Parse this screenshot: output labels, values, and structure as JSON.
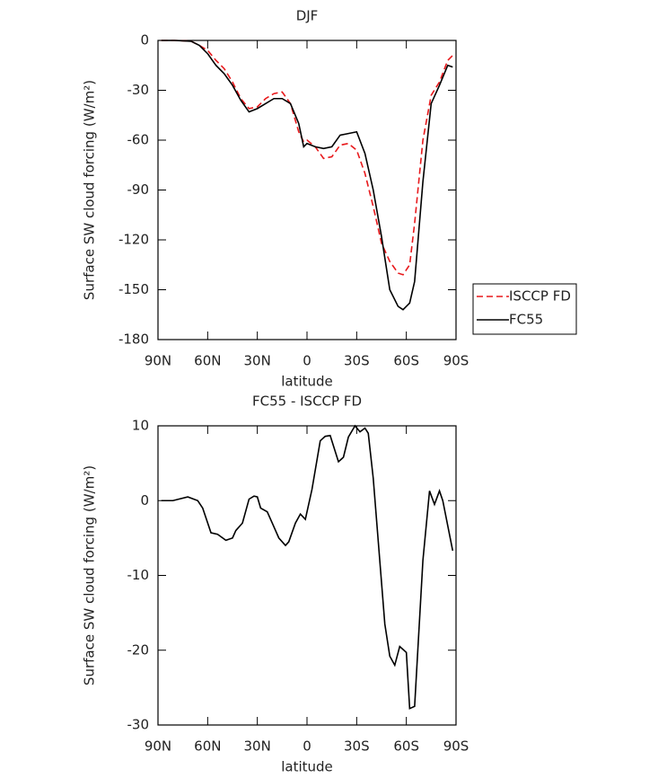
{
  "chart_data": [
    {
      "type": "line",
      "title": "DJF",
      "x_label": "latitude",
      "y_label": "Surface SW cloud forcing (W/m²)",
      "x": [
        88,
        80,
        70,
        65,
        60,
        55,
        50,
        45,
        40,
        35,
        30,
        25,
        20,
        15,
        10,
        5,
        2,
        0,
        -5,
        -10,
        -15,
        -20,
        -25,
        -30,
        -35,
        -40,
        -45,
        -50,
        -55,
        -58,
        -62,
        -65,
        -70,
        -75,
        -80,
        -85,
        -88
      ],
      "series": [
        {
          "name": "ISCCP FD",
          "color": "#e8191c",
          "linestyle": "dashed",
          "values": [
            0,
            0,
            -0.5,
            -3,
            -6,
            -12,
            -17,
            -25,
            -35,
            -41,
            -40,
            -35,
            -32,
            -31,
            -38,
            -55,
            -61,
            -60,
            -64,
            -71,
            -70,
            -63,
            -62,
            -66,
            -80,
            -100,
            -122,
            -133,
            -140,
            -141,
            -135,
            -110,
            -60,
            -33,
            -25,
            -12,
            -9
          ]
        },
        {
          "name": "FC55",
          "color": "#000000",
          "linestyle": "solid",
          "values": [
            0,
            0,
            -0.5,
            -3,
            -8,
            -15,
            -20,
            -27,
            -36,
            -43,
            -41,
            -38,
            -35,
            -35,
            -38,
            -50,
            -64,
            -62,
            -64,
            -65,
            -64,
            -57,
            -56,
            -55,
            -68,
            -90,
            -118,
            -150,
            -160,
            -162,
            -158,
            -145,
            -85,
            -38,
            -27,
            -15,
            -16
          ]
        }
      ],
      "xlim": [
        90,
        -90
      ],
      "xticks": [
        {
          "value": 90,
          "label": "90N"
        },
        {
          "value": 60,
          "label": "60N"
        },
        {
          "value": 30,
          "label": "30N"
        },
        0,
        {
          "value": -30,
          "label": "30S"
        },
        {
          "value": -60,
          "label": "60S"
        },
        {
          "value": -90,
          "label": "90S"
        }
      ],
      "ylim": [
        -180,
        0
      ],
      "yticks": [
        0,
        -30,
        -60,
        -90,
        -120,
        -150,
        -180
      ],
      "legend": "outside-right"
    },
    {
      "type": "line",
      "title": "FC55 - ISCCP FD",
      "x_label": "latitude",
      "y_label": "Surface SW cloud forcing (W/m²)",
      "x": [
        88,
        81,
        72,
        66,
        63,
        58,
        54,
        49,
        45,
        43,
        39,
        35,
        32,
        30,
        28,
        24,
        21,
        17,
        13,
        11,
        7,
        4,
        1,
        -3,
        -8,
        -11,
        -14,
        -19,
        -22,
        -25,
        -29,
        -32,
        -35,
        -37,
        -40,
        -47,
        -50,
        -53,
        -56,
        -60,
        -62,
        -65,
        -70,
        -74,
        -77,
        -80,
        -82,
        -88
      ],
      "series": [
        {
          "name": "FC55 - ISCCP FD",
          "color": "#000000",
          "linestyle": "solid",
          "values": [
            0,
            0,
            0.5,
            0,
            -1,
            -4.3,
            -4.5,
            -5.3,
            -5,
            -4,
            -3,
            0.2,
            0.6,
            0.5,
            -1,
            -1.5,
            -3,
            -5,
            -6,
            -5.5,
            -3,
            -1.8,
            -2.5,
            1.5,
            8,
            8.6,
            8.7,
            5.2,
            5.8,
            8.5,
            10,
            9.2,
            9.7,
            9,
            3,
            -16.5,
            -20.8,
            -22,
            -19.5,
            -20.3,
            -27.8,
            -27.5,
            -8,
            1.3,
            -0.5,
            1.3,
            0,
            -6.7
          ]
        }
      ],
      "xlim": [
        90,
        -90
      ],
      "xticks": [
        {
          "value": 90,
          "label": "90N"
        },
        {
          "value": 60,
          "label": "60N"
        },
        {
          "value": 30,
          "label": "30N"
        },
        0,
        {
          "value": -30,
          "label": "30S"
        },
        {
          "value": -60,
          "label": "60S"
        },
        {
          "value": -90,
          "label": "90S"
        }
      ],
      "ylim": [
        -30,
        10
      ],
      "yticks": [
        10,
        0,
        -10,
        -20,
        -30
      ]
    }
  ]
}
